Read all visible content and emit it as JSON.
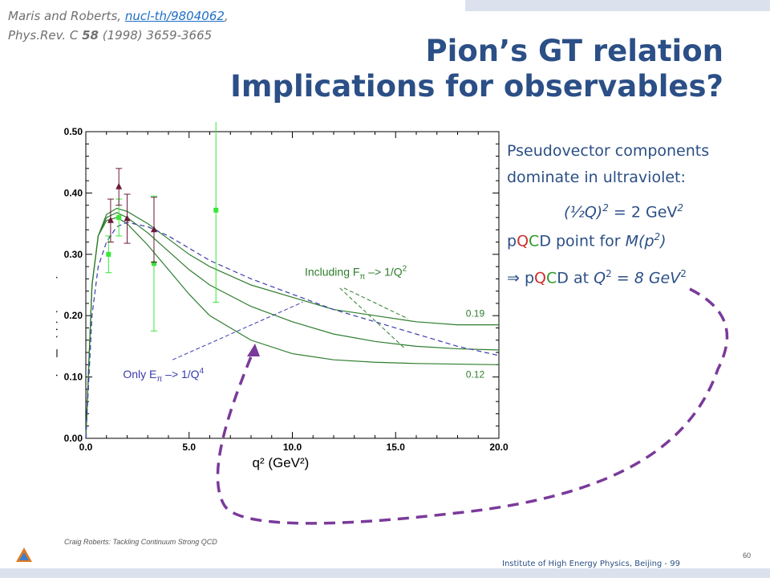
{
  "reference": {
    "authors": "Maris and Roberts,",
    "link_text": "nucl-th/9804062",
    "after_link": ",",
    "journal": "Phys.Rev. C",
    "volume": "58",
    "rest": "(1998) 3659-3665"
  },
  "title": {
    "line1": "Pion’s GT relation",
    "line2": "Implications for observables?"
  },
  "right_text": {
    "line1": "Pseudovector components",
    "line2": "dominate in ultraviolet:",
    "eq_left": "(½Q)",
    "eq_exp": "2",
    "eq_mid": " = 2 GeV",
    "eq_exp2": "2",
    "pqcd_p": "p",
    "pqcd_q": "Q",
    "pqcd_c": "C",
    "pqcd_d": "D",
    "point_for": " point for ",
    "m_expr": "M(p",
    "m_exp": "2",
    "m_close": ")",
    "implies": "⇒ ",
    "at": " at ",
    "q": "Q",
    "q_exp": "2",
    "eq8": " = 8 GeV",
    "eq8_exp": "2"
  },
  "footer": {
    "left": "Craig Roberts: Tackling Continuum Strong QCD",
    "right": "Institute of High Energy Physics, Beijing - 99",
    "page": "60"
  },
  "colors": {
    "title": "#2b4f86",
    "green_curve": "#2e7d2e",
    "blue_dash": "#3b3bb0",
    "green_data": "#39e639",
    "purple_data": "#6b1a3a",
    "purple_arrow": "#7a3a9a"
  },
  "chart_data": {
    "type": "line",
    "xlabel": "q² (GeV²)",
    "ylabel": "q² F_π(q²) (GeV²)",
    "xlim": [
      0,
      20
    ],
    "ylim": [
      0,
      0.5
    ],
    "x_ticks": [
      "0.0",
      "5.0",
      "10.0",
      "15.0",
      "20.0"
    ],
    "y_ticks": [
      "0.00",
      "0.10",
      "0.20",
      "0.30",
      "0.40",
      "0.50"
    ],
    "grid": false,
    "series": [
      {
        "style": "solid-green",
        "end_label": "0.19",
        "x": [
          0,
          0.3,
          0.6,
          1.0,
          1.5,
          2.0,
          3.0,
          4.0,
          5.0,
          6.0,
          8.0,
          10.0,
          12.0,
          14.0,
          16.0,
          18.0,
          20.0
        ],
        "y": [
          0,
          0.25,
          0.33,
          0.365,
          0.375,
          0.37,
          0.35,
          0.325,
          0.3,
          0.28,
          0.25,
          0.23,
          0.21,
          0.2,
          0.19,
          0.185,
          0.185
        ]
      },
      {
        "style": "solid-green",
        "x": [
          0,
          0.3,
          0.6,
          1.0,
          1.5,
          2.0,
          3.0,
          4.0,
          5.0,
          6.0,
          8.0,
          10.0,
          12.0,
          14.0,
          16.0,
          18.0,
          20.0
        ],
        "y": [
          0,
          0.25,
          0.33,
          0.36,
          0.368,
          0.36,
          0.335,
          0.305,
          0.275,
          0.25,
          0.215,
          0.19,
          0.17,
          0.158,
          0.15,
          0.146,
          0.144
        ]
      },
      {
        "style": "solid-green",
        "end_label": "0.12",
        "x": [
          0,
          0.3,
          0.6,
          1.0,
          1.5,
          2.0,
          3.0,
          4.0,
          5.0,
          6.0,
          8.0,
          10.0,
          12.0,
          14.0,
          16.0,
          18.0,
          20.0
        ],
        "y": [
          0,
          0.25,
          0.33,
          0.355,
          0.36,
          0.35,
          0.315,
          0.275,
          0.235,
          0.2,
          0.16,
          0.138,
          0.128,
          0.124,
          0.122,
          0.121,
          0.12
        ]
      },
      {
        "style": "dashed-blue",
        "x": [
          0,
          0.3,
          0.6,
          1.0,
          1.5,
          2.0,
          3.0,
          4.0,
          5.0,
          6.0,
          8.0,
          10.0,
          12.0,
          14.0,
          16.0,
          18.0,
          20.0
        ],
        "y": [
          0,
          0.2,
          0.28,
          0.32,
          0.345,
          0.352,
          0.345,
          0.33,
          0.31,
          0.29,
          0.26,
          0.235,
          0.21,
          0.19,
          0.17,
          0.15,
          0.135
        ]
      }
    ],
    "points_green": [
      {
        "x": 1.1,
        "y": 0.3,
        "err": 0.03
      },
      {
        "x": 1.6,
        "y": 0.36,
        "err": 0.03
      },
      {
        "x": 3.3,
        "y": 0.285,
        "err": 0.11
      },
      {
        "x": 6.3,
        "y": 0.372,
        "err": 0.15
      }
    ],
    "points_purple": [
      {
        "x": 1.2,
        "y": 0.355,
        "err": 0.035
      },
      {
        "x": 1.6,
        "y": 0.41,
        "err": 0.03
      },
      {
        "x": 2.0,
        "y": 0.358,
        "err": 0.04
      },
      {
        "x": 3.3,
        "y": 0.34,
        "err": 0.053
      }
    ],
    "annotations": [
      {
        "text_main": "Including F",
        "sub": "π",
        "rest": " –> 1/Q",
        "sup": "2"
      },
      {
        "text_main": "Only E",
        "sub": "π",
        "rest": " –> 1/Q",
        "sup": "4"
      }
    ]
  }
}
